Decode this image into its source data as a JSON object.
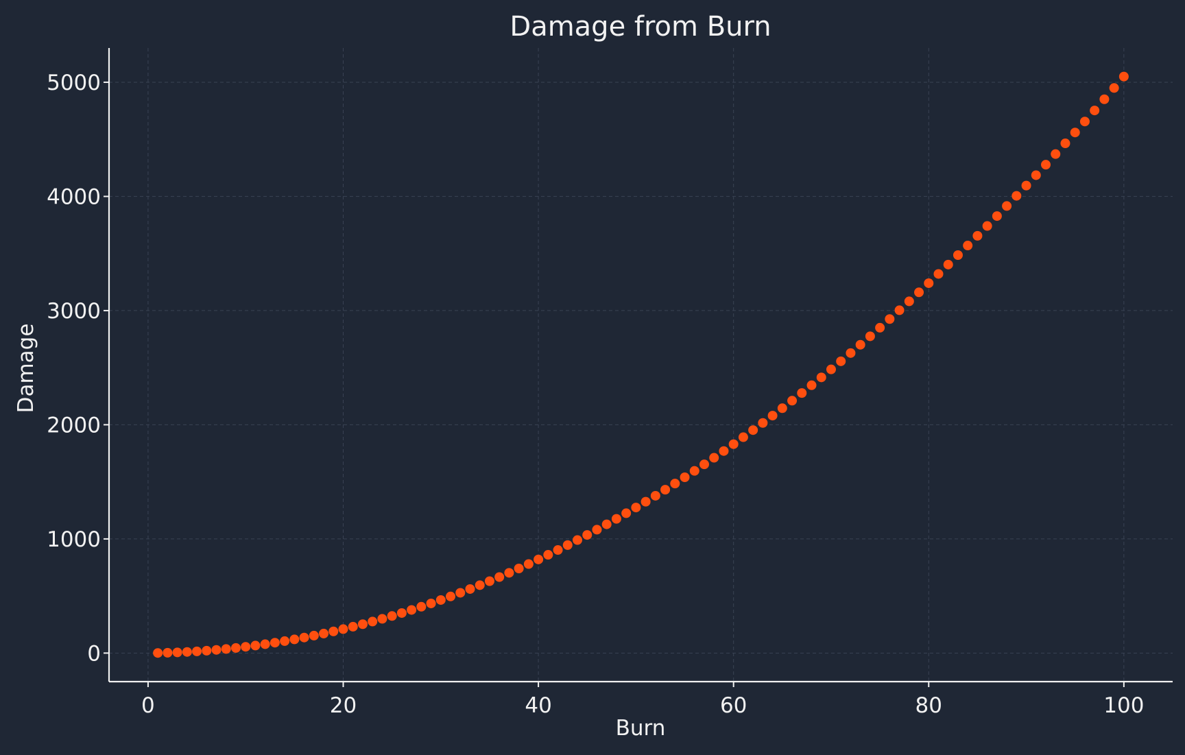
{
  "colors": {
    "background": "#1f2735",
    "axis": "#f2f2f2",
    "grid": "#3a4354",
    "marker": "#ff4f0f",
    "text": "#f2f2f2"
  },
  "chart_data": {
    "type": "scatter",
    "title": "Damage from Burn",
    "xlabel": "Burn",
    "ylabel": "Damage",
    "xlim": [
      -4,
      105
    ],
    "ylim": [
      -250,
      5300
    ],
    "grid": true,
    "xticks": [
      0,
      20,
      40,
      60,
      80,
      100
    ],
    "yticks": [
      0,
      1000,
      2000,
      3000,
      4000,
      5000
    ],
    "series": [
      {
        "formula_note": "",
        "x": [
          1,
          2,
          3,
          4,
          5,
          6,
          7,
          8,
          9,
          10,
          11,
          12,
          13,
          14,
          15,
          16,
          17,
          18,
          19,
          20,
          21,
          22,
          23,
          24,
          25,
          26,
          27,
          28,
          29,
          30,
          31,
          32,
          33,
          34,
          35,
          36,
          37,
          38,
          39,
          40,
          41,
          42,
          43,
          44,
          45,
          46,
          47,
          48,
          49,
          50,
          51,
          52,
          53,
          54,
          55,
          56,
          57,
          58,
          59,
          60,
          61,
          62,
          63,
          64,
          65,
          66,
          67,
          68,
          69,
          70,
          71,
          72,
          73,
          74,
          75,
          76,
          77,
          78,
          79,
          80,
          81,
          82,
          83,
          84,
          85,
          86,
          87,
          88,
          89,
          90,
          91,
          92,
          93,
          94,
          95,
          96,
          97,
          98,
          99,
          100
        ],
        "y": [
          1,
          3,
          6,
          10,
          15,
          21,
          28,
          36,
          45,
          55,
          66,
          78,
          91,
          105,
          120,
          136,
          153,
          171,
          190,
          210,
          231,
          253,
          276,
          300,
          325,
          351,
          378,
          406,
          435,
          465,
          496,
          528,
          561,
          595,
          630,
          666,
          703,
          741,
          780,
          820,
          861,
          903,
          946,
          990,
          1035,
          1081,
          1128,
          1176,
          1225,
          1275,
          1326,
          1378,
          1431,
          1485,
          1540,
          1596,
          1653,
          1711,
          1770,
          1830,
          1891,
          1953,
          2016,
          2080,
          2145,
          2211,
          2278,
          2346,
          2415,
          2485,
          2556,
          2628,
          2701,
          2775,
          2850,
          2926,
          3003,
          3081,
          3160,
          3240,
          3321,
          3403,
          3486,
          3570,
          3655,
          3741,
          3828,
          3916,
          4005,
          4095,
          4186,
          4278,
          4371,
          4465,
          4560,
          4656,
          4753,
          4851,
          4950,
          5050
        ]
      }
    ]
  }
}
